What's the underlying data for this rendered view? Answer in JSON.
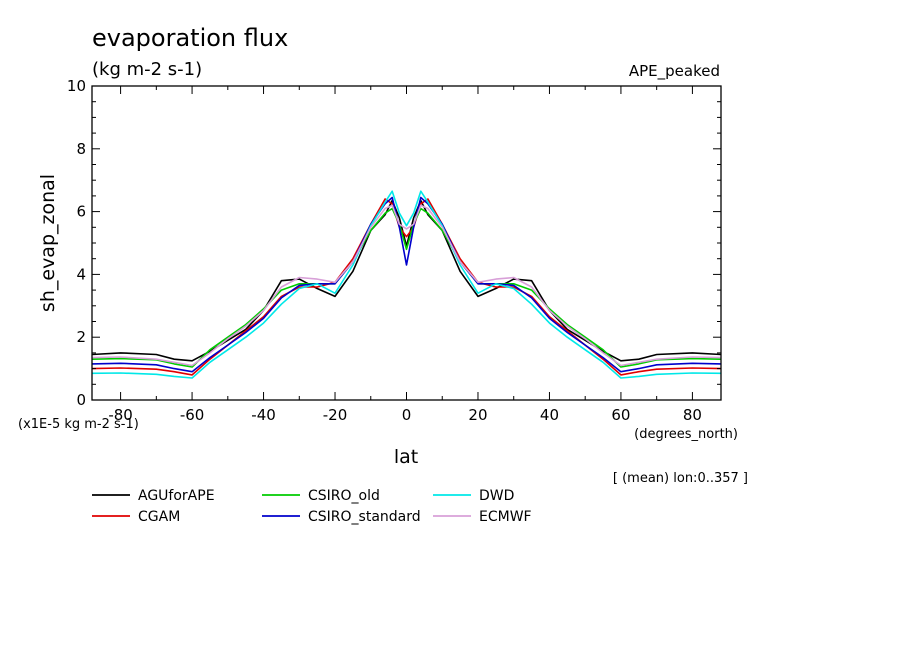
{
  "chart_data": {
    "type": "line",
    "title": "evaporation flux",
    "units": "(kg m-2 s-1)",
    "experiment": "APE_peaked",
    "ylabel": "sh_evap_zonal",
    "xlabel": "lat",
    "x_units": "(degrees_north)",
    "y_scale_note": "(x1E-5 kg m-2 s-1)",
    "mean_note": "[ (mean) lon:0..357 ]",
    "xlim": [
      -88,
      88
    ],
    "ylim": [
      0,
      10
    ],
    "x_ticks": [
      -80,
      -60,
      -40,
      -20,
      0,
      20,
      40,
      60,
      80
    ],
    "x_tick_labels": [
      "-80",
      "-60",
      "-40",
      "-20",
      "0",
      "20",
      "40",
      "60",
      "80"
    ],
    "y_ticks": [
      0,
      2,
      4,
      6,
      8,
      10
    ],
    "y_tick_labels": [
      "0",
      "2",
      "4",
      "6",
      "8",
      "10"
    ],
    "x": [
      -88,
      -80,
      -70,
      -65,
      -60,
      -55,
      -50,
      -45,
      -40,
      -35,
      -30,
      -25,
      -20,
      -15,
      -10,
      -6,
      -4,
      -2,
      0,
      2,
      4,
      6,
      10,
      15,
      20,
      25,
      30,
      35,
      40,
      45,
      50,
      55,
      60,
      65,
      70,
      80,
      88
    ],
    "series": [
      {
        "name": "AGUforAPE",
        "color": "#000000",
        "values": [
          1.45,
          1.5,
          1.45,
          1.3,
          1.25,
          1.55,
          1.9,
          2.25,
          2.85,
          3.8,
          3.85,
          3.55,
          3.3,
          4.1,
          5.4,
          5.9,
          6.35,
          5.8,
          4.9,
          5.8,
          6.35,
          5.9,
          5.4,
          4.1,
          3.3,
          3.55,
          3.85,
          3.8,
          2.85,
          2.25,
          1.9,
          1.55,
          1.25,
          1.3,
          1.45,
          1.5,
          1.45
        ]
      },
      {
        "name": "CGAM",
        "color": "#e00000",
        "values": [
          1.0,
          1.02,
          0.98,
          0.9,
          0.8,
          1.3,
          1.75,
          2.2,
          2.65,
          3.3,
          3.6,
          3.6,
          3.75,
          4.5,
          5.6,
          6.4,
          6.25,
          5.5,
          5.2,
          5.5,
          6.25,
          6.4,
          5.6,
          4.5,
          3.75,
          3.6,
          3.6,
          3.3,
          2.65,
          2.2,
          1.75,
          1.3,
          0.8,
          0.9,
          0.98,
          1.02,
          1.0
        ]
      },
      {
        "name": "CSIRO_old",
        "color": "#00cc00",
        "values": [
          1.3,
          1.32,
          1.28,
          1.15,
          1.05,
          1.6,
          2.0,
          2.4,
          2.9,
          3.5,
          3.7,
          3.7,
          3.7,
          4.4,
          5.4,
          5.95,
          6.1,
          5.6,
          4.8,
          5.6,
          6.1,
          5.95,
          5.4,
          4.4,
          3.7,
          3.7,
          3.7,
          3.5,
          2.9,
          2.4,
          2.0,
          1.6,
          1.05,
          1.15,
          1.28,
          1.32,
          1.3
        ]
      },
      {
        "name": "CSIRO_standard",
        "color": "#0000cc",
        "values": [
          1.15,
          1.17,
          1.12,
          1.0,
          0.9,
          1.35,
          1.75,
          2.15,
          2.6,
          3.25,
          3.65,
          3.7,
          3.7,
          4.4,
          5.6,
          6.25,
          6.45,
          5.5,
          4.3,
          5.5,
          6.45,
          6.25,
          5.6,
          4.4,
          3.7,
          3.7,
          3.65,
          3.25,
          2.6,
          2.15,
          1.75,
          1.35,
          0.9,
          1.0,
          1.12,
          1.17,
          1.15
        ]
      },
      {
        "name": "DWD",
        "color": "#00e8e8",
        "values": [
          0.85,
          0.86,
          0.82,
          0.75,
          0.7,
          1.2,
          1.6,
          2.0,
          2.45,
          3.05,
          3.55,
          3.7,
          3.4,
          4.3,
          5.55,
          6.3,
          6.65,
          5.95,
          5.55,
          5.95,
          6.65,
          6.3,
          5.55,
          4.3,
          3.4,
          3.7,
          3.55,
          3.05,
          2.45,
          2.0,
          1.6,
          1.2,
          0.7,
          0.75,
          0.82,
          0.86,
          0.85
        ]
      },
      {
        "name": "ECMWF",
        "color": "#d8a0d8",
        "values": [
          1.35,
          1.37,
          1.3,
          1.2,
          1.1,
          1.5,
          1.95,
          2.35,
          2.85,
          3.6,
          3.9,
          3.85,
          3.75,
          4.4,
          5.5,
          6.1,
          6.2,
          5.6,
          5.45,
          5.6,
          6.2,
          6.1,
          5.5,
          4.4,
          3.75,
          3.85,
          3.9,
          3.6,
          2.85,
          2.35,
          1.95,
          1.5,
          1.1,
          1.2,
          1.3,
          1.37,
          1.35
        ]
      }
    ]
  }
}
